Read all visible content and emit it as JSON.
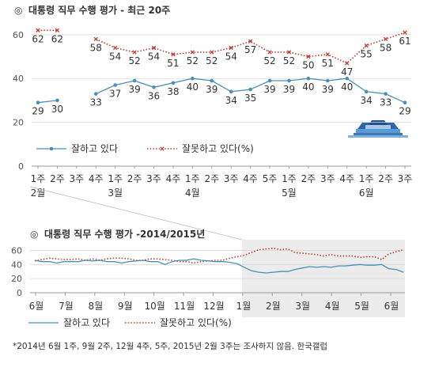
{
  "colors": {
    "approve": "#4a90b5",
    "disapprove": "#c0392b",
    "grid": "#d9d9d9",
    "axis": "#999999",
    "shade": "#ececec"
  },
  "chart_data": [
    {
      "type": "line",
      "title": "대통령 직무 수행 평가 - 최근 20주",
      "title_symbol": "◎",
      "ylim": [
        0,
        65
      ],
      "yticks": [
        "0",
        "20",
        "40",
        "60"
      ],
      "x_week_labels": [
        "1주",
        "2주",
        "3주",
        "4주",
        "1주",
        "2주",
        "3주",
        "4주",
        "1주",
        "2주",
        "3주",
        "4주",
        "5주",
        "1주",
        "2주",
        "3주",
        "4주",
        "1주",
        "2주",
        "3주"
      ],
      "x_month_labels": [
        {
          "label": "2월",
          "index": 0
        },
        {
          "label": "3월",
          "index": 4
        },
        {
          "label": "4월",
          "index": 8
        },
        {
          "label": "5월",
          "index": 13
        },
        {
          "label": "6월",
          "index": 17
        }
      ],
      "series": [
        {
          "name": "잘하고 있다",
          "style": "solid-marker",
          "values": [
            29,
            30,
            null,
            33,
            37,
            39,
            36,
            38,
            40,
            39,
            34,
            35,
            39,
            39,
            40,
            39,
            40,
            34,
            33,
            29
          ]
        },
        {
          "name": "잘못하고 있다(%)",
          "style": "dotted-marker",
          "values": [
            62,
            62,
            null,
            58,
            54,
            52,
            54,
            51,
            52,
            52,
            54,
            57,
            52,
            52,
            50,
            51,
            47,
            55,
            58,
            61
          ]
        }
      ]
    },
    {
      "type": "line",
      "title": "대통령 직무 수행 평가 -2014/2015년",
      "title_symbol": "◎",
      "ylim": [
        0,
        65
      ],
      "yticks": [
        "0",
        "20",
        "40",
        "60"
      ],
      "x_month_labels": [
        "6월",
        "7월",
        "8월",
        "9월",
        "10월",
        "11월",
        "12월",
        "1월",
        "2월",
        "3월",
        "4월",
        "5월",
        "6월"
      ],
      "series": [
        {
          "name": "잘하고 있다",
          "style": "solid",
          "values": [
            46,
            44,
            44,
            42,
            44,
            44,
            44,
            46,
            45,
            46,
            44,
            44,
            42,
            44,
            45,
            46,
            44,
            44,
            40,
            44,
            46,
            46,
            48,
            46,
            45,
            44,
            44,
            43,
            41,
            36,
            31,
            29,
            28,
            29,
            30,
            30,
            33,
            35,
            37,
            36,
            37,
            36,
            38,
            38,
            39,
            40,
            39,
            39,
            40,
            34,
            33,
            29
          ]
        },
        {
          "name": "잘못하고 있다(%)",
          "style": "dotted",
          "values": [
            45,
            47,
            49,
            48,
            47,
            47,
            48,
            46,
            48,
            46,
            48,
            49,
            49,
            48,
            46,
            46,
            48,
            48,
            47,
            46,
            44,
            44,
            42,
            44,
            45,
            46,
            46,
            49,
            51,
            53,
            57,
            61,
            62,
            63,
            61,
            62,
            57,
            56,
            55,
            54,
            52,
            54,
            52,
            52,
            52,
            50,
            51,
            51,
            47,
            55,
            58,
            61
          ]
        }
      ]
    }
  ],
  "footnote": "*2014년 6월 1주, 9월 2주, 12월 4주, 5주, 2015년 2월 3주는 조사하지 않음. 한국갤럽"
}
